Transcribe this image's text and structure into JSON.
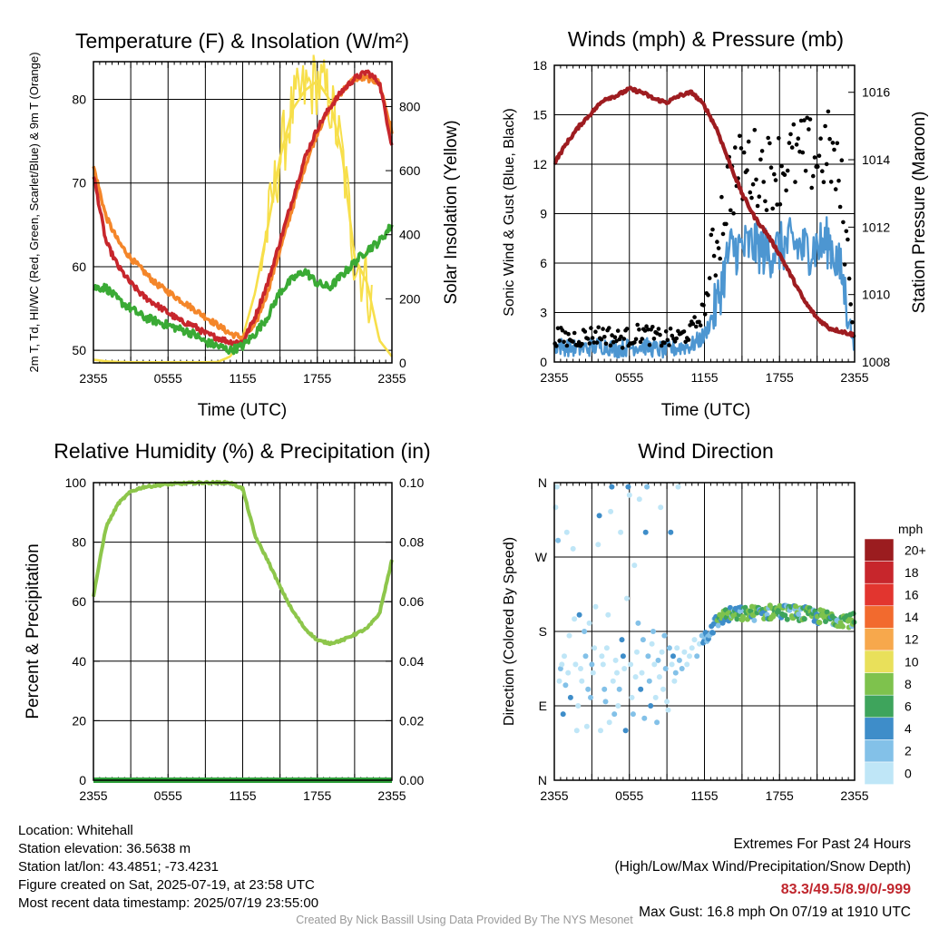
{
  "chart_data": [
    {
      "type": "line",
      "title": "Temperature (F) & Insolation (W/m²)",
      "xlabel": "Time (UTC)",
      "ylabel": "2m T, Td, HI/WC (Red, Green, Scarlet/Blue) & 9m T (Orange)",
      "ylabel_right": "Solar Insolation (Yellow)",
      "xticks": [
        "2355",
        "0555",
        "1155",
        "1755",
        "2355"
      ],
      "yticks": [
        "50",
        "60",
        "70",
        "80"
      ],
      "yticks_right": [
        "0",
        "200",
        "400",
        "600",
        "800"
      ],
      "ylim": [
        48.5,
        84.5
      ],
      "ylim_right": [
        0,
        940
      ],
      "x_hours_after_2355": [
        0,
        1,
        2,
        3,
        4,
        5,
        6,
        7,
        8,
        9,
        10,
        11,
        12,
        13,
        14,
        15,
        16,
        17,
        18,
        19,
        20,
        21,
        22,
        23,
        24
      ],
      "series": [
        {
          "axis": "left",
          "color": "#f4862a",
          "values": [
            72,
            66,
            63,
            61,
            59.5,
            58,
            57,
            56,
            55,
            54,
            53,
            52,
            51.5,
            53,
            57,
            62,
            67,
            72,
            76,
            79,
            81,
            82.5,
            82.5,
            82,
            76
          ]
        },
        {
          "axis": "left",
          "color": "#c7262c",
          "values": [
            71,
            63,
            60,
            58,
            56.5,
            55.5,
            54.5,
            53.5,
            53,
            52,
            51.5,
            51,
            51,
            54,
            58,
            63,
            68,
            73,
            76.5,
            79,
            81,
            82.5,
            83.3,
            82,
            74.5
          ]
        },
        {
          "axis": "left",
          "color": "#3aaa35",
          "values": [
            57.5,
            57.5,
            56,
            55,
            54,
            53.5,
            53,
            52.5,
            52,
            51,
            50.5,
            50,
            50.5,
            52,
            54,
            57,
            58.5,
            59.5,
            58,
            57.5,
            59,
            60.5,
            62,
            63,
            65
          ]
        },
        {
          "axis": "right",
          "color": "#f7df4a",
          "values": [
            10,
            5,
            3,
            2,
            2,
            2,
            2,
            2,
            2,
            2,
            3,
            20,
            80,
            220,
            420,
            640,
            790,
            850,
            880,
            820,
            650,
            330,
            250,
            70,
            20
          ]
        }
      ]
    },
    {
      "type": "scatter",
      "title": "Winds (mph) & Pressure (mb)",
      "xlabel": "Time (UTC)",
      "ylabel": "Sonic Wind & Gust (Blue, Black)",
      "ylabel_right": "Station Pressure (Maroon)",
      "xticks": [
        "2355",
        "0555",
        "1155",
        "1755",
        "2355"
      ],
      "yticks": [
        "0",
        "3",
        "6",
        "9",
        "12",
        "15",
        "18"
      ],
      "yticks_right": [
        "1008",
        "1010",
        "1012",
        "1014",
        "1016"
      ],
      "ylim": [
        0,
        18
      ],
      "ylim_right": [
        1008,
        1016.8
      ],
      "x_hours_after_2355": [
        0,
        1,
        2,
        3,
        4,
        5,
        6,
        7,
        8,
        9,
        10,
        11,
        12,
        13,
        14,
        15,
        16,
        17,
        18,
        19,
        20,
        21,
        22,
        23,
        24
      ],
      "series": [
        {
          "name": "pressure",
          "color": "#9e1c20",
          "values": [
            1013.9,
            1014.5,
            1015.0,
            1015.4,
            1015.8,
            1015.9,
            1016.1,
            1016.0,
            1015.8,
            1015.7,
            1015.9,
            1016.0,
            1015.6,
            1014.9,
            1013.9,
            1013.0,
            1012.3,
            1011.8,
            1011.2,
            1010.5,
            1009.8,
            1009.3,
            1009.0,
            1008.9,
            1008.8
          ]
        },
        {
          "name": "sonic wind",
          "color": "#4d96d1",
          "values": [
            1.0,
            0.9,
            0.8,
            0.9,
            1.0,
            0.8,
            0.9,
            1.0,
            0.8,
            0.7,
            0.9,
            1.0,
            1.6,
            3.5,
            6.8,
            6.9,
            7.1,
            6.6,
            6.9,
            7.2,
            6.8,
            7.0,
            7.3,
            5.2,
            0.6
          ]
        },
        {
          "name": "gust",
          "color": "#000000",
          "values": [
            1.6,
            1.4,
            1.5,
            1.6,
            1.7,
            1.4,
            1.5,
            1.8,
            1.5,
            1.4,
            1.5,
            1.9,
            3.2,
            7.5,
            11.0,
            11.6,
            11.9,
            11.6,
            11.8,
            12.3,
            12.6,
            12.4,
            13.0,
            10.0,
            1.2
          ]
        }
      ]
    },
    {
      "type": "line",
      "title": "Relative Humidity (%) & Precipitation (in)",
      "ylabel": "Percent & Precipitation",
      "xticks": [
        "2355",
        "0555",
        "1155",
        "1755",
        "2355"
      ],
      "yticks": [
        "0",
        "20",
        "40",
        "60",
        "80",
        "100"
      ],
      "yticks_right": [
        "0.00",
        "0.02",
        "0.04",
        "0.06",
        "0.08",
        "0.10"
      ],
      "ylim": [
        0,
        100
      ],
      "ylim_right": [
        0,
        0.1
      ],
      "x_hours_after_2355": [
        0,
        1,
        2,
        3,
        4,
        5,
        6,
        7,
        8,
        9,
        10,
        11,
        12,
        13,
        14,
        15,
        16,
        17,
        18,
        19,
        20,
        21,
        22,
        23,
        24
      ],
      "series": [
        {
          "name": "relative humidity",
          "color": "#8dc64b",
          "values": [
            62,
            85,
            93,
            97,
            98.5,
            99,
            99.5,
            99.7,
            99.9,
            100,
            100,
            100,
            98,
            82,
            74,
            65,
            57,
            51,
            47,
            46,
            47,
            49,
            51,
            56,
            74
          ]
        },
        {
          "name": "precipitation",
          "color": "#2e9f3a",
          "values": [
            0,
            0,
            0,
            0,
            0,
            0,
            0,
            0,
            0,
            0,
            0,
            0,
            0,
            0,
            0,
            0,
            0,
            0,
            0,
            0,
            0,
            0,
            0,
            0,
            0
          ]
        }
      ]
    },
    {
      "type": "scatter",
      "title": "Wind Direction",
      "ylabel": "Direction (Colored By Speed)",
      "xticks": [
        "2355",
        "0555",
        "1155",
        "1755",
        "2355"
      ],
      "yticks": [
        "N",
        "E",
        "S",
        "W",
        "N"
      ],
      "ylim": [
        0,
        360
      ],
      "colorbar": {
        "title": "mph",
        "labels": [
          "0",
          "2",
          "4",
          "6",
          "8",
          "10",
          "12",
          "14",
          "16",
          "18",
          "20+"
        ],
        "colors": [
          "#bfe6f7",
          "#83c1e8",
          "#3e8dc9",
          "#3ea45c",
          "#7ec24d",
          "#e9e05a",
          "#f7a84c",
          "#f26a2e",
          "#e2352f",
          "#c7262c",
          "#9b1c1f"
        ]
      },
      "points_before_1155": [
        [
          0.1,
          330
        ],
        [
          0.2,
          355
        ],
        [
          0.3,
          290
        ],
        [
          0.4,
          120
        ],
        [
          0.5,
          135
        ],
        [
          0.6,
          140
        ],
        [
          0.7,
          80
        ],
        [
          0.8,
          150
        ],
        [
          0.9,
          115
        ],
        [
          1.0,
          300
        ],
        [
          1.1,
          130
        ],
        [
          1.2,
          175
        ],
        [
          1.3,
          100
        ],
        [
          1.5,
          280
        ],
        [
          1.6,
          195
        ],
        [
          1.7,
          140
        ],
        [
          1.8,
          60
        ],
        [
          1.9,
          90
        ],
        [
          2.0,
          200
        ],
        [
          2.1,
          135
        ],
        [
          2.2,
          120
        ],
        [
          2.4,
          180
        ],
        [
          2.5,
          150
        ],
        [
          2.6,
          65
        ],
        [
          2.7,
          110
        ],
        [
          2.8,
          190
        ],
        [
          2.9,
          100
        ],
        [
          3.0,
          140
        ],
        [
          3.1,
          130
        ],
        [
          3.2,
          160
        ],
        [
          3.3,
          210
        ],
        [
          3.5,
          285
        ],
        [
          3.6,
          320
        ],
        [
          3.7,
          60
        ],
        [
          3.8,
          150
        ],
        [
          3.9,
          140
        ],
        [
          4.0,
          110
        ],
        [
          4.1,
          95
        ],
        [
          4.2,
          160
        ],
        [
          4.3,
          200
        ],
        [
          4.4,
          70
        ],
        [
          4.5,
          325
        ],
        [
          4.6,
          355
        ],
        [
          4.7,
          120
        ],
        [
          4.8,
          80
        ],
        [
          4.9,
          145
        ],
        [
          5.0,
          130
        ],
        [
          5.1,
          90
        ],
        [
          5.2,
          110
        ],
        [
          5.3,
          300
        ],
        [
          5.4,
          170
        ],
        [
          5.5,
          150
        ],
        [
          5.6,
          135
        ],
        [
          5.7,
          60
        ],
        [
          5.8,
          220
        ],
        [
          5.9,
          355
        ],
        [
          6.0,
          345
        ],
        [
          6.1,
          140
        ],
        [
          6.2,
          100
        ],
        [
          6.3,
          80
        ],
        [
          6.4,
          260
        ],
        [
          6.5,
          125
        ],
        [
          6.6,
          155
        ],
        [
          6.7,
          190
        ],
        [
          6.8,
          340
        ],
        [
          6.9,
          110
        ],
        [
          7.0,
          130
        ],
        [
          7.1,
          170
        ],
        [
          7.2,
          75
        ],
        [
          7.3,
          300
        ],
        [
          7.4,
          355
        ],
        [
          7.5,
          150
        ],
        [
          7.6,
          120
        ],
        [
          7.7,
          90
        ],
        [
          7.8,
          165
        ],
        [
          7.9,
          180
        ],
        [
          8.0,
          140
        ],
        [
          8.1,
          100
        ],
        [
          8.2,
          70
        ],
        [
          8.3,
          145
        ],
        [
          8.4,
          125
        ],
        [
          8.5,
          330
        ],
        [
          8.6,
          155
        ],
        [
          8.7,
          110
        ],
        [
          8.8,
          175
        ],
        [
          8.9,
          135
        ],
        [
          9.0,
          95
        ],
        [
          9.1,
          85
        ],
        [
          9.2,
          160
        ],
        [
          9.3,
          300
        ],
        [
          9.4,
          140
        ],
        [
          9.5,
          150
        ],
        [
          9.6,
          120
        ],
        [
          9.7,
          130
        ],
        [
          9.8,
          160
        ],
        [
          9.9,
          355
        ],
        [
          10.0,
          145
        ],
        [
          10.2,
          135
        ],
        [
          10.4,
          155
        ],
        [
          10.6,
          140
        ],
        [
          10.8,
          150
        ],
        [
          11.0,
          160
        ],
        [
          11.2,
          170
        ],
        [
          11.4,
          150
        ],
        [
          11.6,
          165
        ],
        [
          11.8,
          175
        ]
      ],
      "trend_after_1155": [
        [
          12.0,
          172
        ],
        [
          12.5,
          182
        ],
        [
          13.0,
          192
        ],
        [
          13.5,
          198
        ],
        [
          14.0,
          200
        ],
        [
          15.0,
          201
        ],
        [
          16.0,
          202
        ],
        [
          17.0,
          203
        ],
        [
          18.0,
          204
        ],
        [
          19.0,
          203
        ],
        [
          20.0,
          201
        ],
        [
          21.0,
          198
        ],
        [
          22.0,
          196
        ],
        [
          23.0,
          195
        ],
        [
          24.0,
          193
        ]
      ]
    }
  ],
  "footer": {
    "location": "Location: Whitehall",
    "elevation": "Station elevation: 36.5638 m",
    "latlon": "Station lat/lon: 43.4851; -73.4231",
    "created": "Figure created on Sat, 2025-07-19, at 23:58 UTC",
    "recent": "Most recent data timestamp: 2025/07/19 23:55:00",
    "extremes_title": "Extremes For Past 24 Hours",
    "extremes_legend": "(High/Low/Max Wind/Precipitation/Snow Depth)",
    "extremes_values": "83.3/49.5/8.9/0/-999",
    "max_gust": "Max Gust: 16.8 mph On 07/19 at 1910 UTC",
    "credit": "Created By Nick Bassill Using Data Provided By The NYS Mesonet"
  }
}
